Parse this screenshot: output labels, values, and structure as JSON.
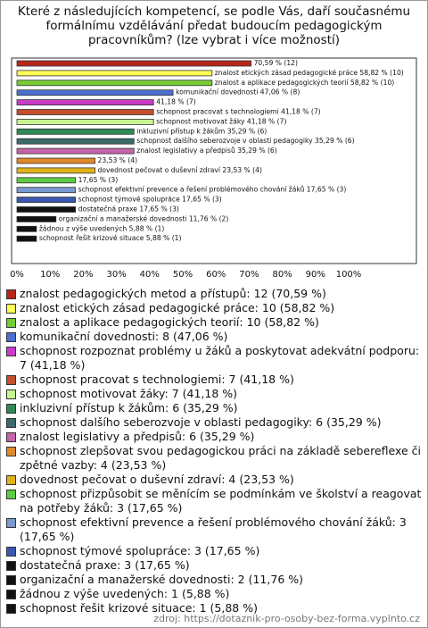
{
  "chart_data": {
    "type": "barh",
    "title": "Které z následujících kompetencí, se podle Vás, daří současnému formálnímu vzdělávání předat budoucím pedagogickým pracovníkům? (lze vybrat i více možností)",
    "categories": [
      "znalost pedagogických metod a přístupů: 12 (70,59 %)",
      "znalost etických zásad pedagogické práce: 10 (58,82 %)",
      "znalost a aplikace pedagogických teorií: 10 (58,82 %)",
      "komunikační dovednosti: 8 (47,06 %)",
      "schopnost rozpoznat problémy u žáků a poskytovat adekvátní podporu: 7 (41,18 %)",
      "schopnost pracovat s technologiemi: 7 (41,18 %)",
      "schopnost motivovat žáky: 7 (41,18 %)",
      "inkluzivní přístup k žákům: 6 (35,29 %)",
      "schopnost dalšího seberozvoje v oblasti pedagogiky: 6 (35,29 %)",
      "znalost legislativy a předpisů: 6 (35,29 %)",
      "schopnost zlepšovat svou pedagogickou práci na základě sebereflexe či zpětné vazby: 4 (23,53 %)",
      "dovednost pečovat o duševní zdraví: 4 (23,53 %)",
      "schopnost přizpůsobit se měnícím se podmínkám ve školství a reagovat na potřeby žáků: 3 (17,65 %)",
      "schopnost efektivní prevence a řešení problémového chování žáků: 3 (17,65 %)",
      "schopnost týmové spolupráce: 3 (17,65 %)",
      "dostatečná praxe: 3 (17,65 %)",
      "organizační a manažerské dovednosti: 2 (11,76 %)",
      "žádnou z výše uvedených: 1 (5,88 %)",
      "schopnost řešit krizové situace: 1 (5,88 %)"
    ],
    "values": [
      70.59,
      58.82,
      58.82,
      47.06,
      41.18,
      41.18,
      41.18,
      35.29,
      35.29,
      35.29,
      23.53,
      23.53,
      17.65,
      17.65,
      17.65,
      17.65,
      11.76,
      5.88,
      5.88
    ],
    "value_labels": [
      "70,59 % (12)",
      "znalost etických zásad pedagogické práce 58,82 % (10)",
      "znalost a aplikace pedagogických teorií 58,82 % (10)",
      "komunikační dovednosti 47,06 % (8)",
      "41,18 % (7)",
      "schopnost pracovat s technologiemi 41,18 % (7)",
      "schopnost motivovat žáky 41,18 % (7)",
      "inkluzivní přístup k žákům 35,29 % (6)",
      "schopnost dalšího seberozvoje v oblasti pedagogiky 35,29 % (6)",
      "znalost legislativy a předpisů 35,29 % (6)",
      "23,53 % (4)",
      "dovednost pečovat o duševní zdraví 23,53 % (4)",
      "17,65 % (3)",
      "schopnost efektivní prevence a řešení problémového chování žáků 17,65 % (3)",
      "schopnost týmové spolupráce 17,65 % (3)",
      "dostatečná praxe 17,65 % (3)",
      "organizační a manažerské dovednosti 11,76 % (2)",
      "žádnou z výše uvedených 5,88 % (1)",
      "schopnost řešit krizové situace 5,88 % (1)"
    ],
    "colors": [
      "#b8261b",
      "#ffff55",
      "#77cc33",
      "#4a6fd0",
      "#c83cc8",
      "#c4502c",
      "#c6f590",
      "#2e8b57",
      "#3a6b6b",
      "#c464a8",
      "#e0882a",
      "#e0b21c",
      "#5ccc44",
      "#7a9ad0",
      "#3a58b0",
      "#111111",
      "#111111",
      "#111111",
      "#111111"
    ],
    "xlim": [
      0,
      120
    ],
    "xticks": [
      {
        "value": 0,
        "label": "0%"
      },
      {
        "value": 10,
        "label": "10%"
      },
      {
        "value": 20,
        "label": "20%"
      },
      {
        "value": 30,
        "label": "30%"
      },
      {
        "value": 40,
        "label": "40%"
      },
      {
        "value": 50,
        "label": "50%"
      },
      {
        "value": 60,
        "label": "60%"
      },
      {
        "value": 70,
        "label": "70%"
      },
      {
        "value": 80,
        "label": "80%"
      },
      {
        "value": 90,
        "label": "90%"
      },
      {
        "value": 100,
        "label": "100%"
      }
    ],
    "source": "zdroj: https://dotaznik-pro-osoby-bez-forma.vyplnto.cz"
  }
}
